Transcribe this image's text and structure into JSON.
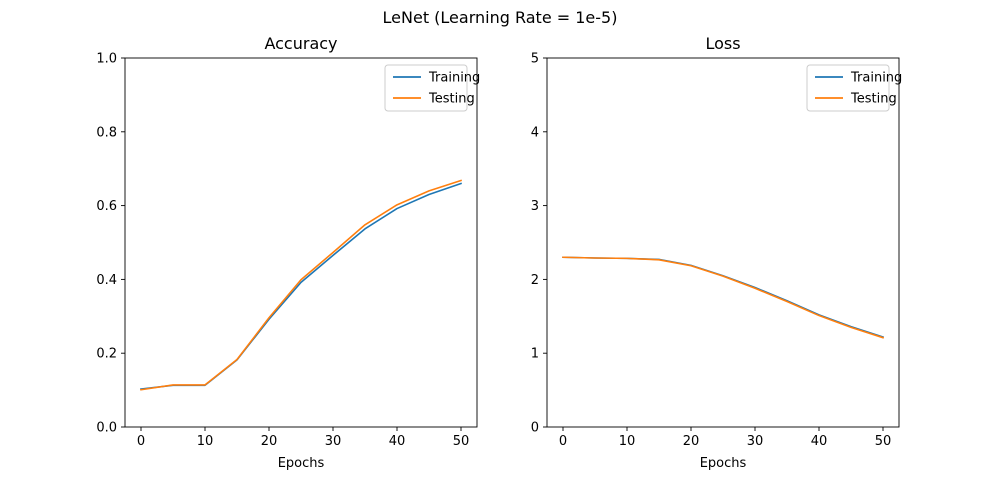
{
  "figure": {
    "suptitle": "LeNet (Learning Rate = 1e-5)"
  },
  "colors": {
    "training": "#1f77b4",
    "testing": "#ff7f0e"
  },
  "chart_data": [
    {
      "type": "line",
      "title": "Accuracy",
      "xlabel": "Epochs",
      "ylabel": "",
      "xlim": [
        -2.5,
        52.5
      ],
      "ylim": [
        0,
        1
      ],
      "xticks": [
        0,
        10,
        20,
        30,
        40,
        50
      ],
      "yticks": [
        0.0,
        0.2,
        0.4,
        0.6,
        0.8,
        1.0
      ],
      "ytick_labels": [
        "0.0",
        "0.2",
        "0.4",
        "0.6",
        "0.8",
        "1.0"
      ],
      "xtick_labels": [
        "0",
        "10",
        "20",
        "30",
        "40",
        "50"
      ],
      "legend_position": "top-right",
      "x": [
        0,
        5,
        10,
        15,
        20,
        25,
        30,
        35,
        40,
        45,
        50
      ],
      "series": [
        {
          "name": "Training",
          "values": [
            0.103,
            0.113,
            0.113,
            0.182,
            0.292,
            0.392,
            0.465,
            0.537,
            0.592,
            0.63,
            0.66
          ]
        },
        {
          "name": "Testing",
          "values": [
            0.101,
            0.114,
            0.114,
            0.183,
            0.296,
            0.399,
            0.473,
            0.548,
            0.602,
            0.64,
            0.668
          ]
        }
      ]
    },
    {
      "type": "line",
      "title": "Loss",
      "xlabel": "Epochs",
      "ylabel": "",
      "xlim": [
        -2.5,
        52.5
      ],
      "ylim": [
        0,
        5
      ],
      "xticks": [
        0,
        10,
        20,
        30,
        40,
        50
      ],
      "yticks": [
        0,
        1,
        2,
        3,
        4,
        5
      ],
      "ytick_labels": [
        "0",
        "1",
        "2",
        "3",
        "4",
        "5"
      ],
      "xtick_labels": [
        "0",
        "10",
        "20",
        "30",
        "40",
        "50"
      ],
      "legend_position": "top-right",
      "x": [
        0,
        5,
        10,
        15,
        20,
        25,
        30,
        35,
        40,
        45,
        50
      ],
      "series": [
        {
          "name": "Training",
          "values": [
            2.3,
            2.29,
            2.285,
            2.27,
            2.19,
            2.05,
            1.89,
            1.71,
            1.52,
            1.36,
            1.22
          ]
        },
        {
          "name": "Testing",
          "values": [
            2.3,
            2.29,
            2.285,
            2.265,
            2.185,
            2.045,
            1.88,
            1.7,
            1.51,
            1.35,
            1.21
          ]
        }
      ]
    }
  ]
}
